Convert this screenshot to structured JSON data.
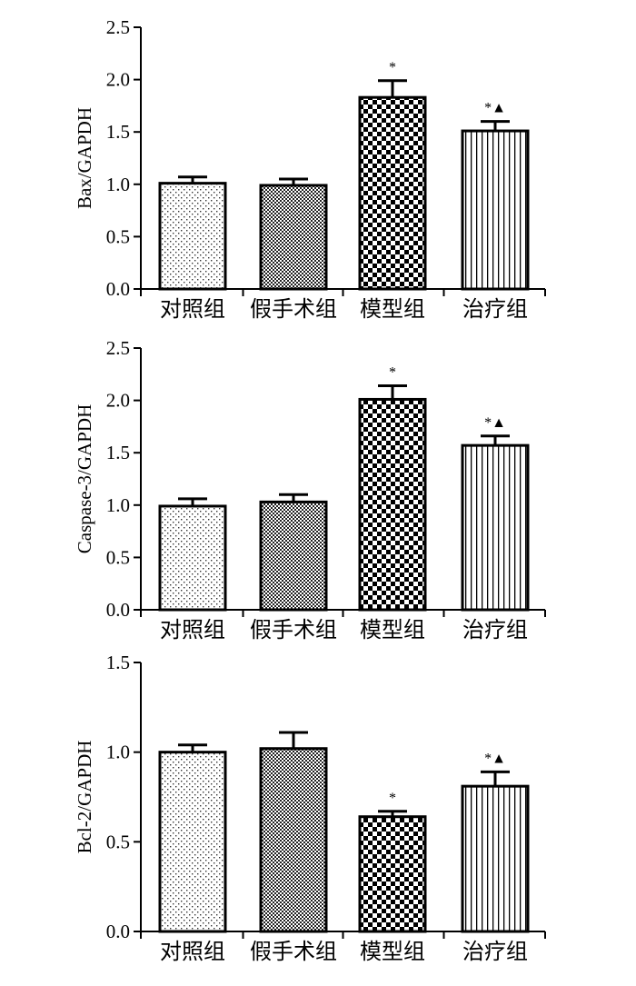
{
  "chart_data": [
    {
      "type": "bar",
      "ylabel": "Bax/GAPDH",
      "xlabel": "",
      "categories": [
        "对照组",
        "假手术组",
        "模型组",
        "治疗组"
      ],
      "values": [
        1.01,
        0.99,
        1.83,
        1.51
      ],
      "errors": [
        0.06,
        0.06,
        0.16,
        0.09
      ],
      "annotations": [
        "",
        "",
        "*",
        "*▲"
      ],
      "patterns": [
        "fine-dots",
        "fine-check",
        "coarse-check",
        "vertical-lines"
      ],
      "ylim": [
        0.0,
        2.5
      ],
      "yticks": [
        "0.0",
        "0.5",
        "1.0",
        "1.5",
        "2.0",
        "2.5"
      ],
      "grid": false
    },
    {
      "type": "bar",
      "ylabel": "Caspase-3/GAPDH",
      "xlabel": "",
      "categories": [
        "对照组",
        "假手术组",
        "模型组",
        "治疗组"
      ],
      "values": [
        0.99,
        1.03,
        2.01,
        1.57
      ],
      "errors": [
        0.07,
        0.07,
        0.13,
        0.09
      ],
      "annotations": [
        "",
        "",
        "*",
        "*▲"
      ],
      "patterns": [
        "fine-dots",
        "fine-check",
        "coarse-check",
        "vertical-lines"
      ],
      "ylim": [
        0.0,
        2.5
      ],
      "yticks": [
        "0.0",
        "0.5",
        "1.0",
        "1.5",
        "2.0",
        "2.5"
      ],
      "grid": false
    },
    {
      "type": "bar",
      "ylabel": "Bcl-2/GAPDH",
      "xlabel": "",
      "categories": [
        "对照组",
        "假手术组",
        "模型组",
        "治疗组"
      ],
      "values": [
        1.0,
        1.02,
        0.64,
        0.81
      ],
      "errors": [
        0.04,
        0.09,
        0.03,
        0.08
      ],
      "annotations": [
        "",
        "",
        "*",
        "*▲"
      ],
      "patterns": [
        "fine-dots",
        "fine-check",
        "coarse-check",
        "vertical-lines"
      ],
      "ylim": [
        0.0,
        1.5
      ],
      "yticks": [
        "0.0",
        "0.5",
        "1.0",
        "1.5"
      ],
      "grid": false
    }
  ]
}
